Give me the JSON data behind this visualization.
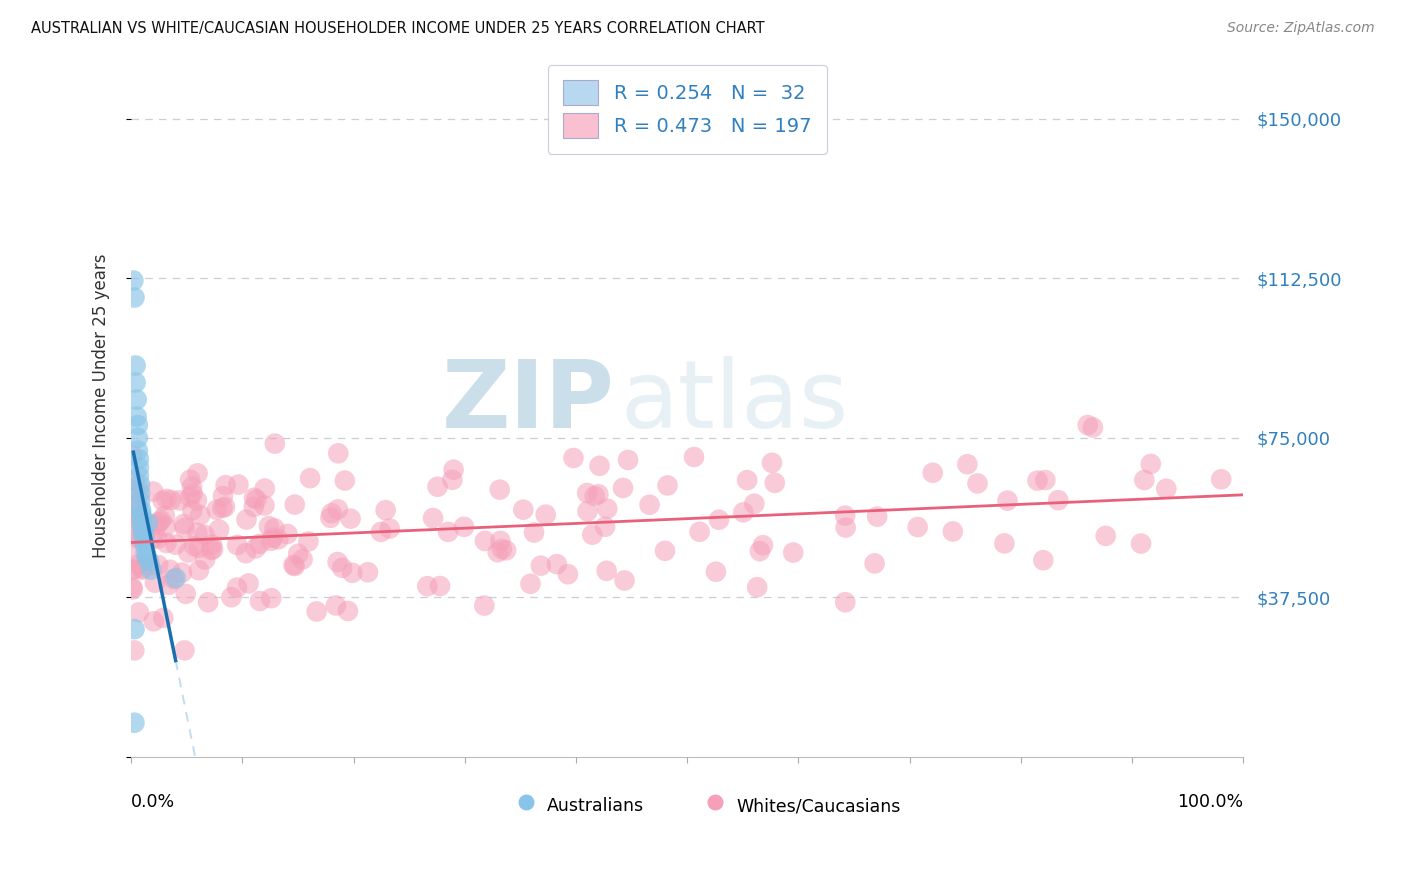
{
  "title": "AUSTRALIAN VS WHITE/CAUCASIAN HOUSEHOLDER INCOME UNDER 25 YEARS CORRELATION CHART",
  "source": "Source: ZipAtlas.com",
  "ylabel": "Householder Income Under 25 years",
  "legend_label1": "R = 0.254   N =  32",
  "legend_label2": "R = 0.473   N = 197",
  "blue_scatter_color": "#89c4e8",
  "blue_line_color": "#1a6faf",
  "pink_scatter_color": "#f5a0b8",
  "pink_line_color": "#e8607a",
  "legend_blue_fill": "#b8d8f0",
  "legend_pink_fill": "#f8c0d0",
  "legend_edge_color": "#ccccdd",
  "grid_color": "#ccccdd",
  "ytick_color": "#3080c0",
  "xlim": [
    0.0,
    1.0
  ],
  "ylim": [
    0,
    165000
  ],
  "yticks": [
    0,
    37500,
    75000,
    112500,
    150000
  ],
  "ytick_labels": [
    "",
    "$37,500",
    "$75,000",
    "$112,500",
    "$150,000"
  ]
}
